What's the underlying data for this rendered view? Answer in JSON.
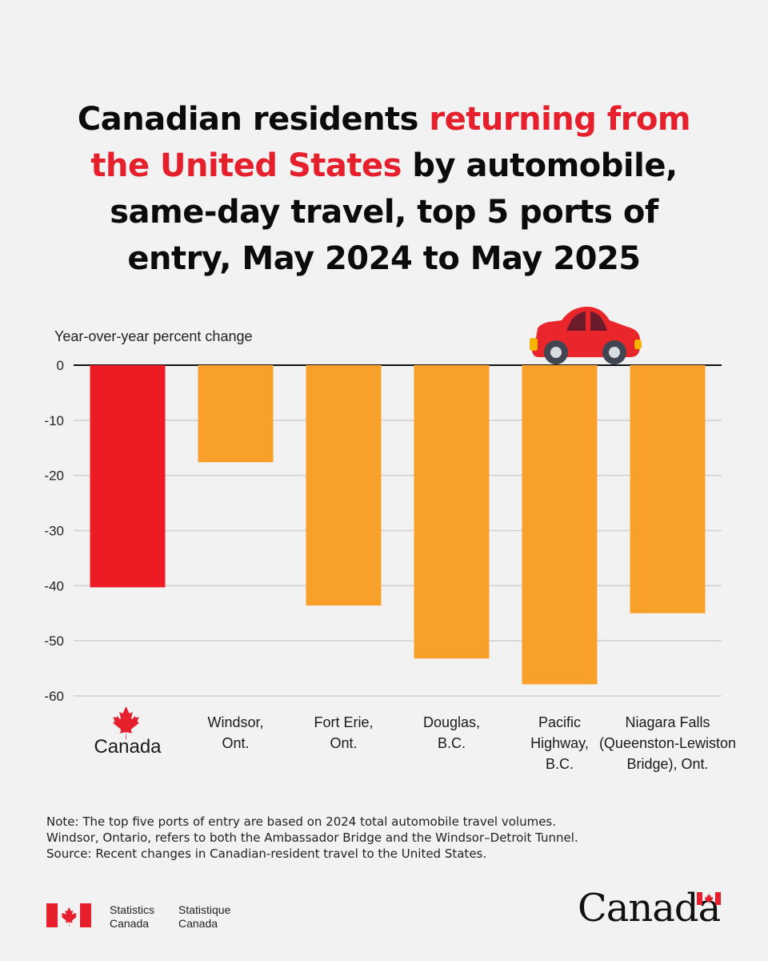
{
  "title": {
    "part1": "Canadian residents ",
    "highlight_line1": "returning from",
    "highlight_line2": "the United States",
    "part2": " by automobile,",
    "line3": "same-day travel, top 5 ports of",
    "line4": "entry, May 2024 to May 2025"
  },
  "colors": {
    "highlight": "#e5202c",
    "canada_bar": "#ed1c24",
    "port_bar": "#f8a02a",
    "grid": "#cfcfcf",
    "car_body": "#e8262c",
    "car_window": "#6b1b2a",
    "car_wheel": "#404652"
  },
  "chart_data": {
    "type": "bar",
    "ylabel": "Year-over-year percent change",
    "ylim": [
      -60,
      0
    ],
    "yticks": [
      0,
      -10,
      -20,
      -30,
      -40,
      -50,
      -60
    ],
    "grid": true,
    "categories": [
      [
        "Canada"
      ],
      [
        "Windsor,",
        "Ont."
      ],
      [
        "Fort Erie,",
        "Ont."
      ],
      [
        "Douglas,",
        "B.C."
      ],
      [
        "Pacific",
        "Highway,",
        "B.C."
      ],
      [
        "Niagara Falls",
        "(Queenston-Lewiston",
        "Bridge), Ont."
      ]
    ],
    "values": [
      -40.3,
      -17.6,
      -43.6,
      -53.2,
      -57.9,
      -45.0
    ],
    "highlight_index": 0
  },
  "icons": {
    "car": "car-icon",
    "maple_leaf": "maple-leaf-icon"
  },
  "notes": [
    "Note: The top five ports of entry are based on 2024 total automobile travel volumes.",
    "Windsor, Ontario, refers to both the Ambassador Bridge and the Windsor–Detroit Tunnel.",
    "Source: Recent changes in Canadian-resident travel to the United States."
  ],
  "footer": {
    "en_line1": "Statistics",
    "en_line2": "Canada",
    "fr_line1": "Statistique",
    "fr_line2": "Canada",
    "wordmark": "Canada"
  }
}
